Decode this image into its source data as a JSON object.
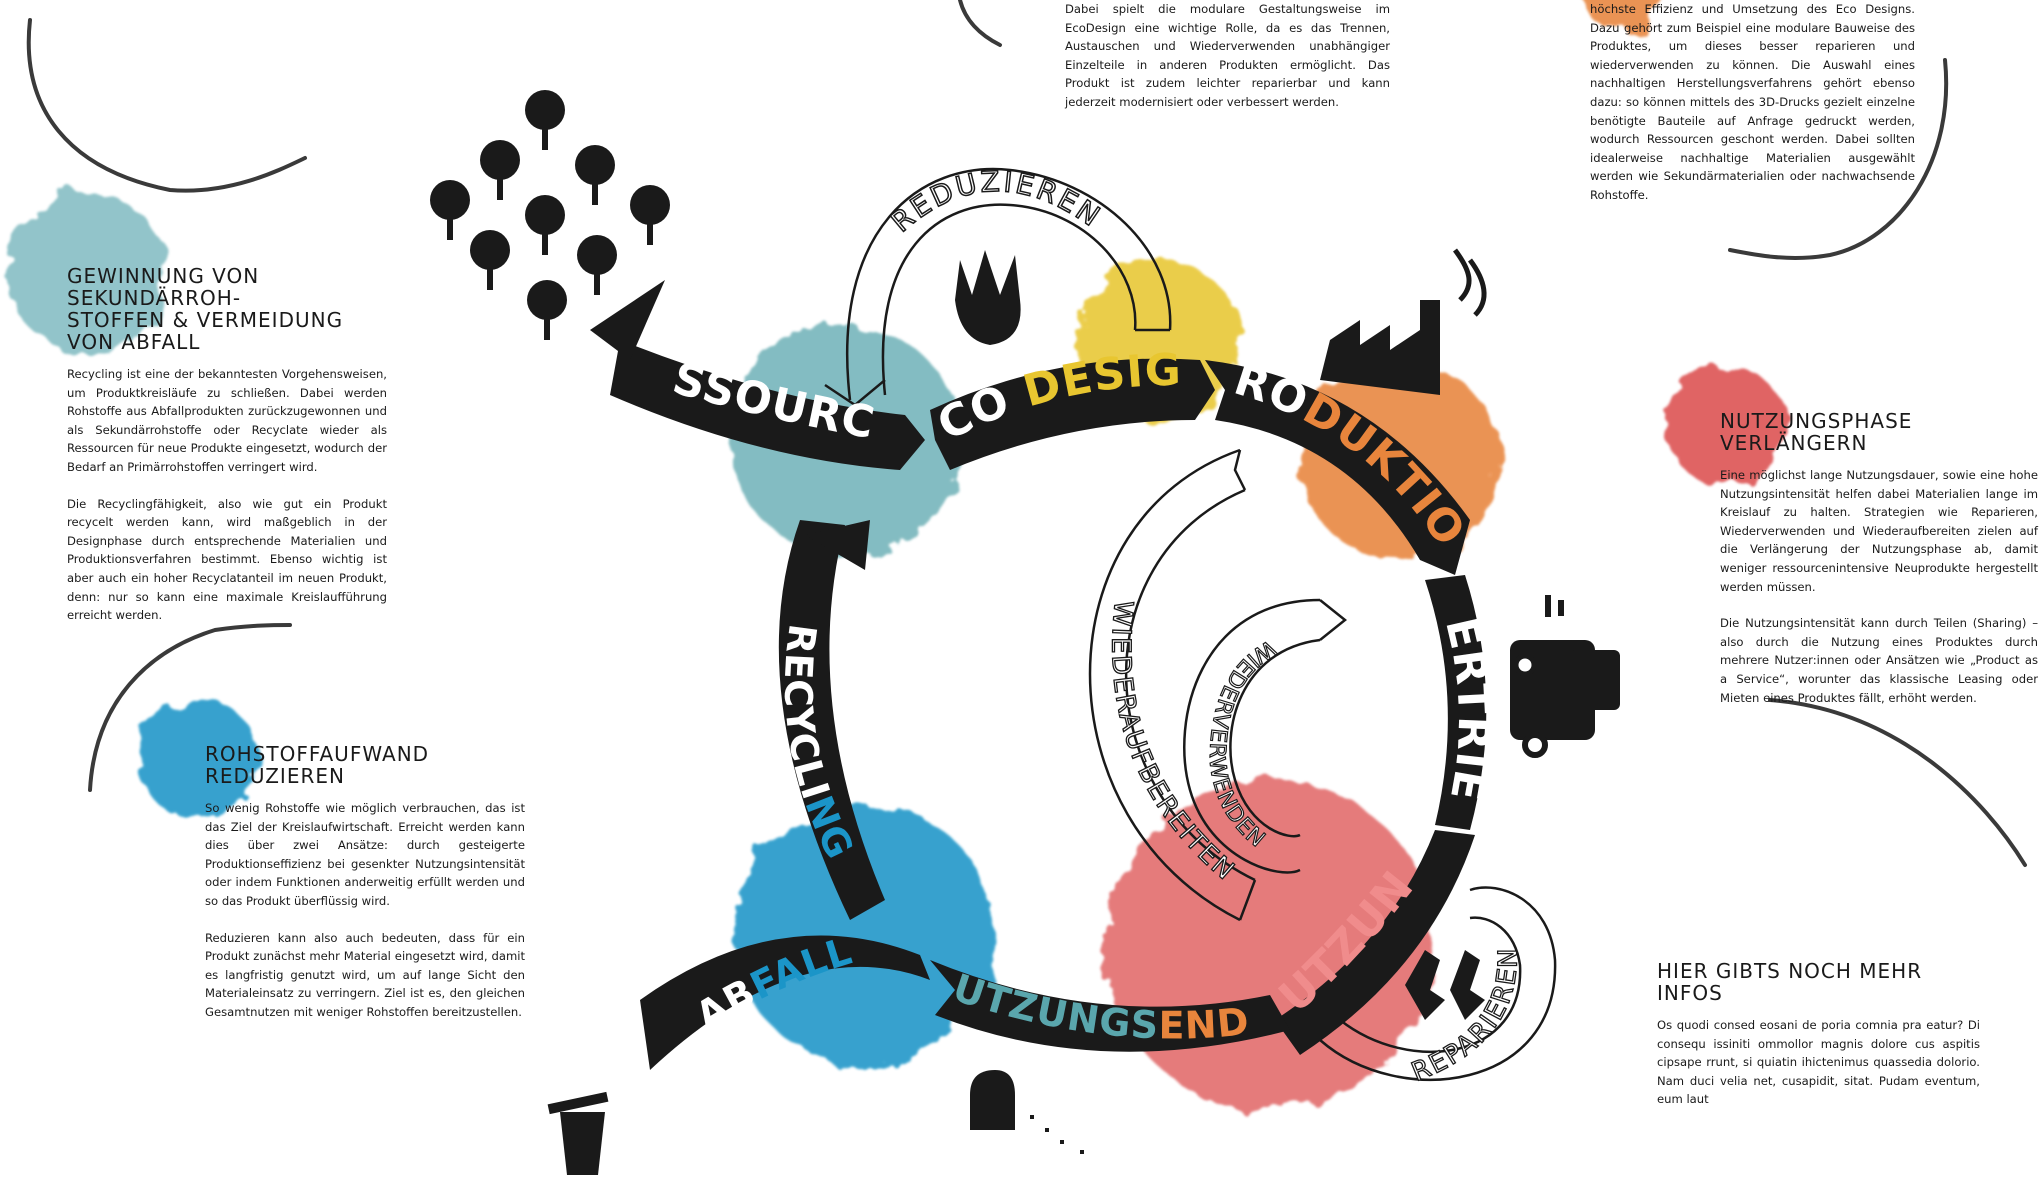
{
  "top_center_text": "Dabei spielt die modulare Gestaltungsweise im EcoDesign eine wichtige Rolle, da es das Trennen, Austauschen und Wiederverwenden unabhängiger Einzelteile in anderen Produkten ermöglicht. Das Produkt ist zudem leichter reparierbar und kann jederzeit modernisiert oder verbessert werden.",
  "top_right_text": "höchste Effizienz und Umsetzung des Eco Designs. Dazu gehört zum Beispiel eine modulare Bauweise des Produktes, um dieses besser reparieren und wiederverwenden zu können. Die Auswahl eines nachhaltigen Herstellungsverfahrens gehört ebenso dazu: so können mittels des 3D-Drucks gezielt einzelne benötigte Bauteile auf Anfrage gedruckt werden, wodurch Ressourcen geschont werden. Dabei sollten idealerweise nachhaltige Materialien ausgewählt werden wie Sekundärmaterialien oder nachwachsende Rohstoffe.",
  "sections": {
    "sekundaer": {
      "title_line1": "GEWINNUNG VON SEKUNDÄRROH-",
      "title_line2": "STOFFEN & VERMEIDUNG VON ABFALL",
      "p1": "Recycling ist eine der bekanntesten Vorgehensweisen, um Produktkreisläufe zu schließen. Dabei werden Rohstoffe aus Abfallprodukten zurückzugewonnen und als Sekundärrohstoffe oder Recyclate wieder als Ressourcen für neue Produkte eingesetzt, wodurch der Bedarf an Primärrohstoffen verringert wird.",
      "p2": "Die Recyclingfähigkeit, also wie gut ein Produkt recycelt werden kann, wird maßgeblich in der Designphase durch entsprechende Materialien und Produktionsverfahren bestimmt. Ebenso wichtig ist aber auch ein hoher Recyclatanteil im neuen Produkt, denn: nur so kann eine maximale Kreislaufführung erreicht werden."
    },
    "rohstoff": {
      "title": "ROHSTOFFAUFWAND REDUZIEREN",
      "p1": "So wenig Rohstoffe wie möglich verbrauchen, das ist das Ziel der Kreislaufwirtschaft. Erreicht werden kann dies über zwei Ansätze: durch gesteigerte Produktionseffizienz bei gesenkter Nutzungsintensität oder indem Funktionen anderweitig erfüllt werden und so das Produkt überflüssig wird.",
      "p2": "Reduzieren kann also auch bedeuten, dass für ein Produkt zunächst mehr Material eingesetzt wird, damit es langfristig genutzt wird, um auf lange Sicht den Materialeinsatz zu verringern. Ziel ist es, den gleichen Gesamtnutzen mit weniger Rohstoffen bereitzustellen."
    },
    "nutzungsphase": {
      "title": "NUTZUNGSPHASE VERLÄNGERN",
      "p1": "Eine möglichst lange Nutzungsdauer, sowie eine hohe Nutzungsintensität helfen dabei Materialien lange im Kreislauf zu halten. Strategien wie Reparieren, Wiederverwenden und Wiederaufbereiten zielen auf die Verlängerung der Nutzungsphase ab, damit weniger ressourcenintensive Neuprodukte hergestellt werden müssen.",
      "p2": "Die Nutzungsintensität kann durch Teilen (Sharing) – also durch die Nutzung eines Produktes durch mehrere Nutzer:innen oder Ansätzen wie „Product as a Service“, worunter das klassische Leasing oder Mieten eines Produktes fällt, erhöht werden."
    },
    "infos": {
      "title": "HIER GIBTS NOCH MEHR INFOS",
      "p1": "Os quodi consed eosani de poria comnia pra eatur? Di consequ issiniti ommollor magnis dolore cus aspitis cipsape rrunt, si quiatin ihictenimus quassedia dolorio. Nam duci velia net, cusapidit, sitat. Pudam eventum, eum laut"
    }
  },
  "cycle": {
    "ressourcen": "RESSOURCEN",
    "eco": "ECO ",
    "design": "DESIGN",
    "produktion_a": "PRO",
    "produktion_b": "DUKTION",
    "vertrieb": "VERTRIEB",
    "nutzung": "NUTZUNG",
    "nutzungsende_a": "NUTZUNGS",
    "nutzungsende_b": "ENDE",
    "abfall_a": "AB",
    "abfall_b": "FALL",
    "recycling_a": "RECYCLI",
    "recycling_b": "NG"
  },
  "loops": {
    "reduzieren": "REDUZIEREN",
    "wiederaufbereiten": "WIEDERAUFBEREITEN",
    "wiederverwenden": "WIEDERVERWENDEN",
    "reparieren": "REPARIEREN"
  },
  "icons": [
    "tree-icon",
    "hand-recycling-icon",
    "factory-icon",
    "delivery-truck-icon",
    "repair-hands-icon",
    "grave-icon",
    "trash-can-icon"
  ],
  "colors": {
    "teal": "#5aa6ad",
    "yellow": "#e8c630",
    "orange": "#e8853c",
    "red": "#dc5050",
    "blue": "#1b95c8",
    "ink": "#1a1a1a"
  }
}
